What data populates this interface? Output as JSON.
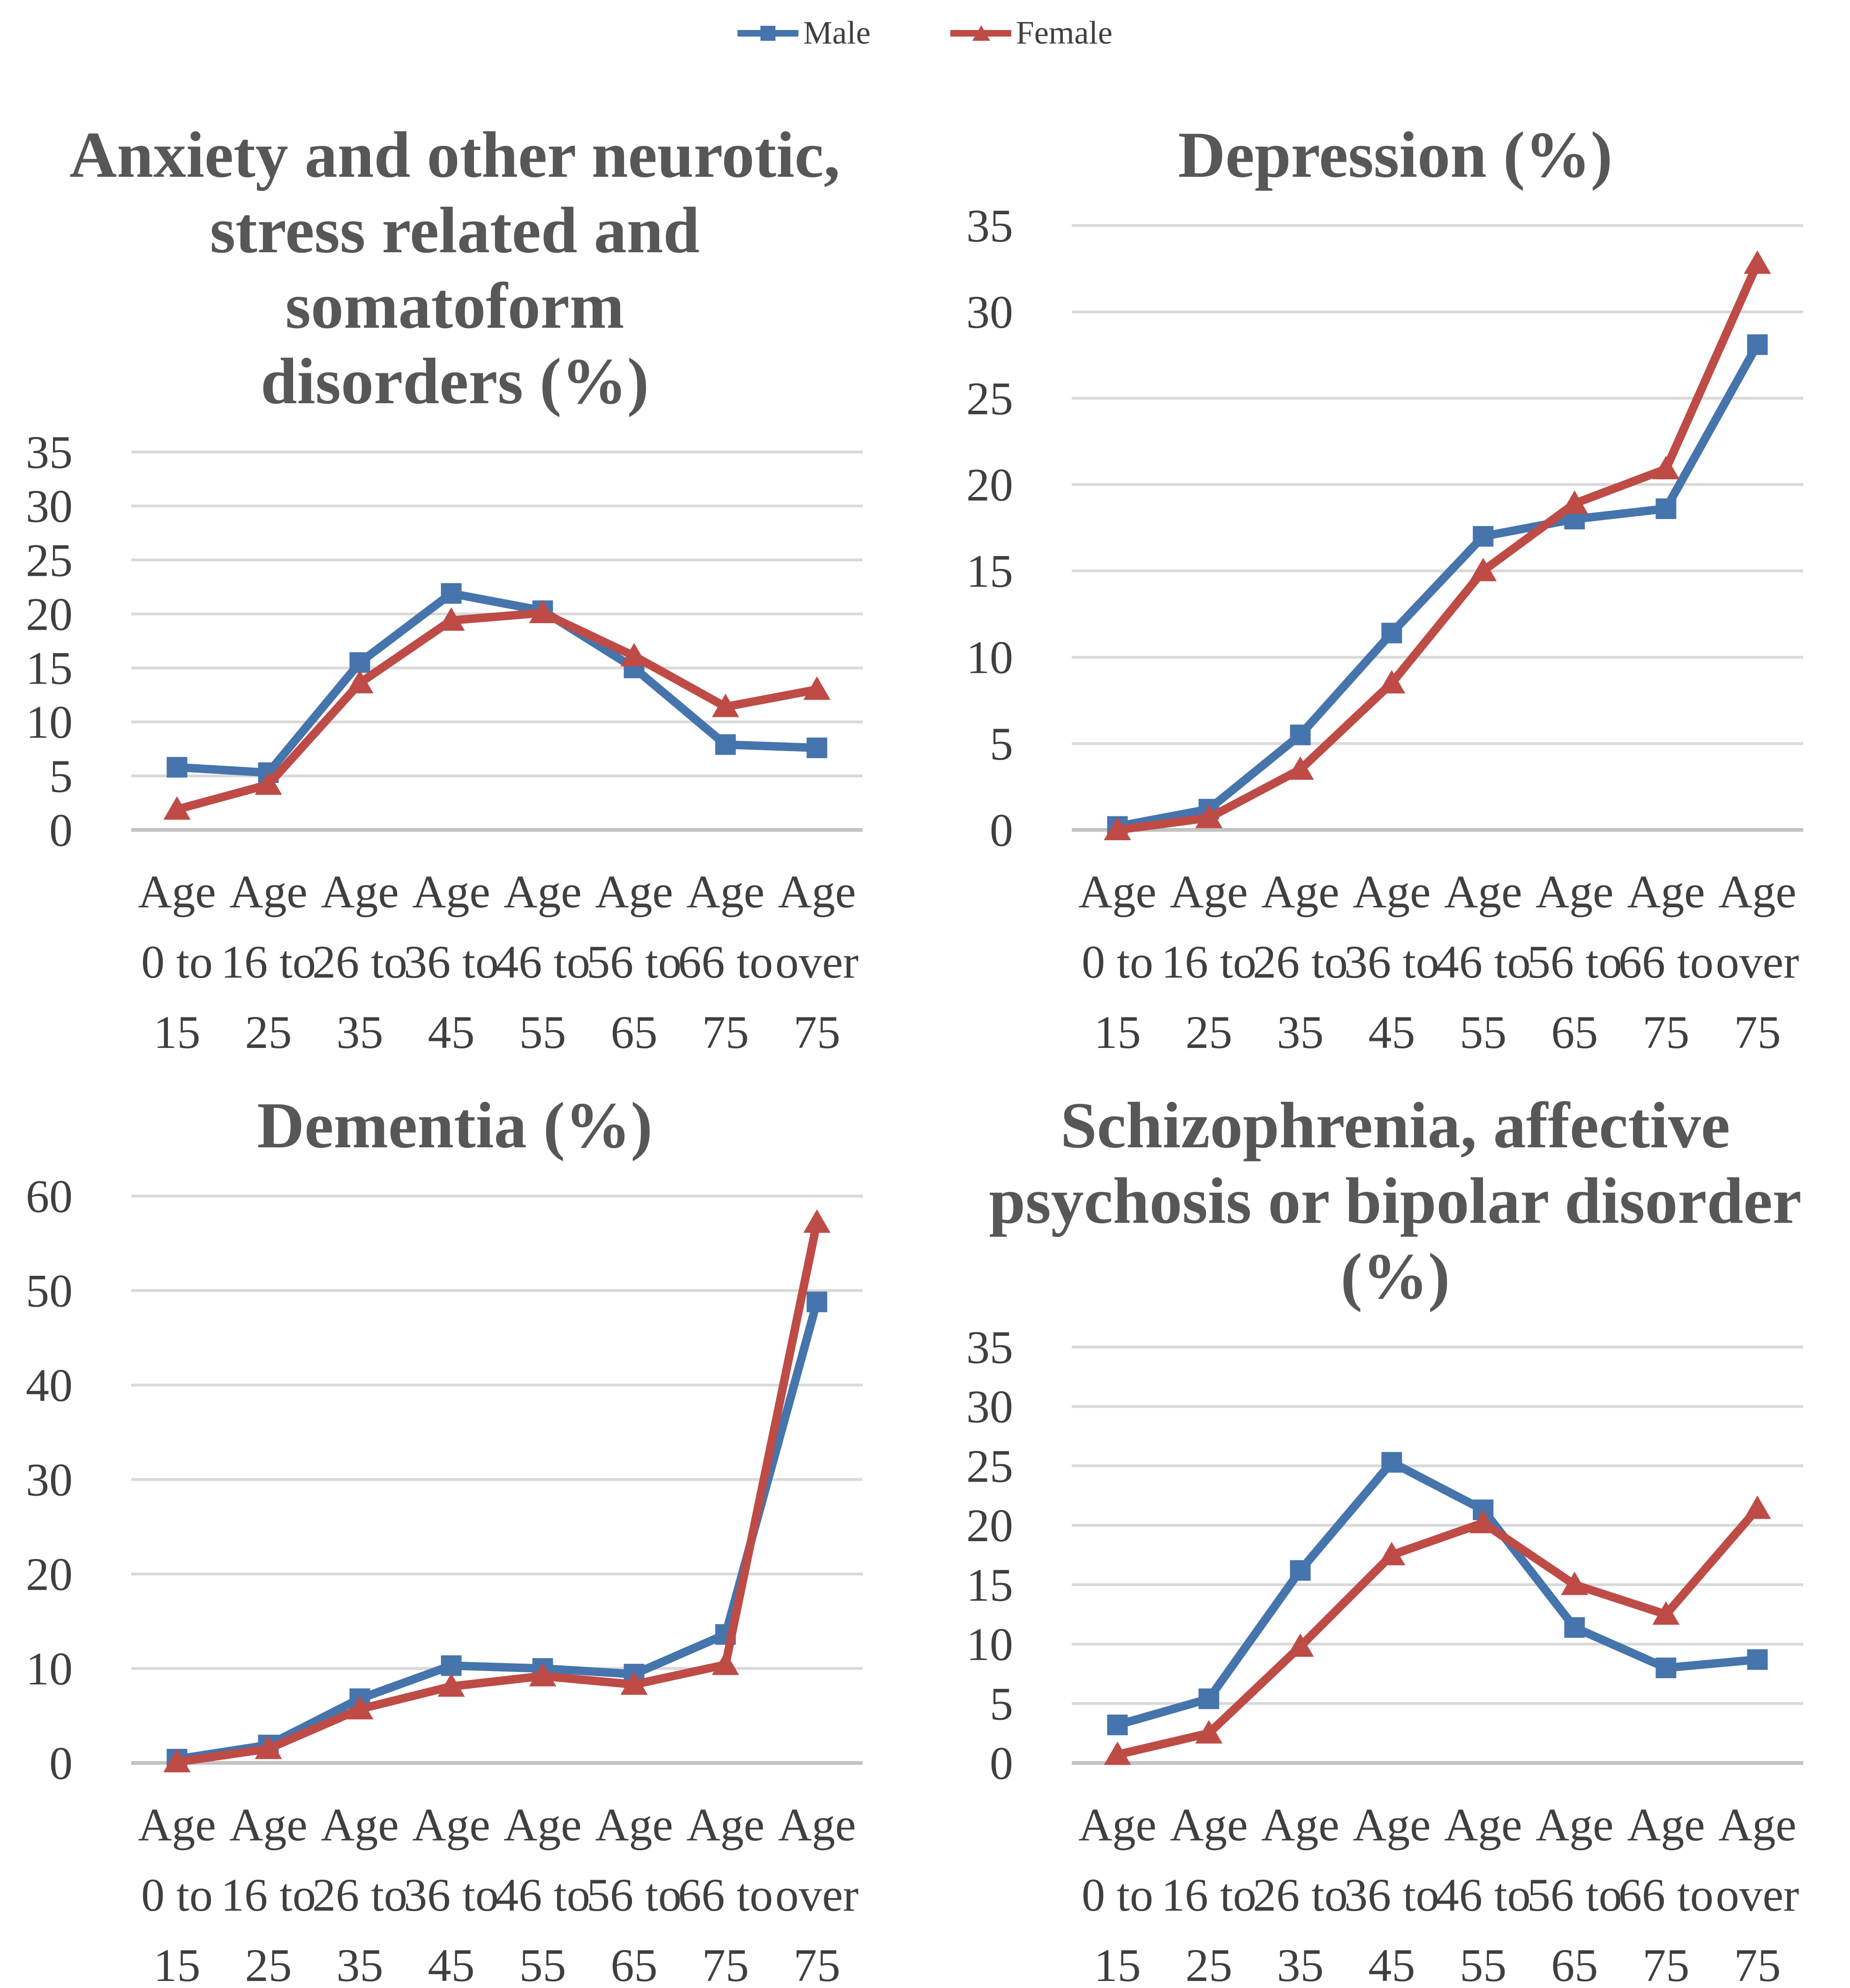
{
  "legend": {
    "items": [
      {
        "label": "Male",
        "marker": "square",
        "color": "#4674AC"
      },
      {
        "label": "Female",
        "marker": "triangle",
        "color": "#BE4B46"
      }
    ]
  },
  "style": {
    "grid_color": "#d9d9d9",
    "axis_color": "#c3c3c3",
    "tick_color": "#3f3f3f",
    "title_color": "#575757",
    "line_width": 18
  },
  "categories": [
    "Age 0 to 15",
    "Age 16 to 25",
    "Age 26 to 35",
    "Age 36 to 45",
    "Age 46 to 55",
    "Age 56 to 65",
    "Age 66 to 75",
    "Age over 75"
  ],
  "category_label_lines": [
    [
      "Age",
      "0 to",
      "15"
    ],
    [
      "Age",
      "16 to",
      "25"
    ],
    [
      "Age",
      "26 to",
      "35"
    ],
    [
      "Age",
      "36 to",
      "45"
    ],
    [
      "Age",
      "46 to",
      "55"
    ],
    [
      "Age",
      "56 to",
      "65"
    ],
    [
      "Age",
      "66 to",
      "75"
    ],
    [
      "Age",
      "over",
      "75"
    ]
  ],
  "chart_data": [
    {
      "id": "anxiety",
      "type": "line",
      "title": "Anxiety and other neurotic,\nstress related and somatoform\ndisorders (%)",
      "ylim": [
        0,
        35
      ],
      "ystep": 5,
      "yticks": [
        35,
        30,
        25,
        20,
        15,
        10,
        5,
        0
      ],
      "grid": true,
      "legend_position": "top-shared",
      "series": [
        {
          "name": "Male",
          "values": [
            5.8,
            5.3,
            15.5,
            21.9,
            20.3,
            15.0,
            7.9,
            7.6
          ]
        },
        {
          "name": "Female",
          "values": [
            1.9,
            4.2,
            13.6,
            19.4,
            20.1,
            16.1,
            11.4,
            13.0
          ]
        }
      ]
    },
    {
      "id": "depression",
      "type": "line",
      "title": "Depression (%)",
      "ylim": [
        0,
        35
      ],
      "ystep": 5,
      "yticks": [
        35,
        30,
        25,
        20,
        15,
        10,
        5,
        0
      ],
      "grid": true,
      "legend_position": "top-shared",
      "series": [
        {
          "name": "Male",
          "values": [
            0.2,
            1.2,
            5.5,
            11.4,
            17.0,
            18.0,
            18.6,
            28.1
          ]
        },
        {
          "name": "Female",
          "values": [
            0.0,
            0.7,
            3.5,
            8.5,
            15.0,
            18.9,
            20.9,
            32.8
          ]
        }
      ]
    },
    {
      "id": "dementia",
      "type": "line",
      "title": "Dementia (%)",
      "ylim": [
        0,
        60
      ],
      "ystep": 10,
      "yticks": [
        60,
        50,
        40,
        30,
        20,
        10,
        0
      ],
      "grid": true,
      "legend_position": "top-shared",
      "series": [
        {
          "name": "Male",
          "values": [
            0.4,
            1.9,
            6.8,
            10.3,
            10.0,
            9.4,
            13.6,
            48.8
          ]
        },
        {
          "name": "Female",
          "values": [
            0.1,
            1.5,
            5.7,
            8.1,
            9.2,
            8.3,
            10.4,
            57.2
          ]
        }
      ]
    },
    {
      "id": "schizophrenia",
      "type": "line",
      "title": "Schizophrenia, affective\npsychosis or bipolar disorder\n(%)",
      "ylim": [
        0,
        35
      ],
      "ystep": 5,
      "yticks": [
        35,
        30,
        25,
        20,
        15,
        10,
        5,
        0
      ],
      "grid": true,
      "legend_position": "top-shared",
      "series": [
        {
          "name": "Male",
          "values": [
            3.2,
            5.4,
            16.2,
            25.3,
            21.3,
            11.4,
            8.0,
            8.7
          ]
        },
        {
          "name": "Female",
          "values": [
            0.7,
            2.5,
            9.8,
            17.5,
            20.2,
            15.0,
            12.5,
            21.4
          ]
        }
      ]
    }
  ]
}
